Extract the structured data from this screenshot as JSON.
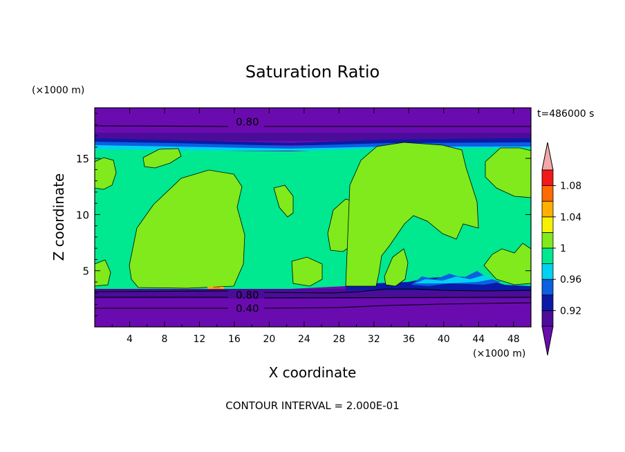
{
  "chart_data": {
    "type": "heatmap",
    "title": "Saturation Ratio",
    "xlabel": "X coordinate",
    "ylabel": "Z coordinate",
    "x_unit": "(×1000 m)",
    "y_unit": "(×1000 m)",
    "time_label": "t=486000 s",
    "footer": "CONTOUR INTERVAL = 2.000E-01",
    "xlim": [
      0,
      50
    ],
    "ylim": [
      0,
      19.5
    ],
    "x_ticks": [
      4,
      8,
      12,
      16,
      20,
      24,
      28,
      32,
      36,
      40,
      44,
      48
    ],
    "y_ticks": [
      5,
      10,
      15
    ],
    "colorbar": {
      "tick_labels": [
        "0.92",
        "0.96",
        "1",
        "1.04",
        "1.08"
      ],
      "levels": [
        0.9,
        0.92,
        0.94,
        0.96,
        0.98,
        1.0,
        1.02,
        1.04,
        1.06,
        1.08,
        1.1
      ],
      "colors": [
        "#4b0c9a",
        "#0a1aa6",
        "#0b5fe0",
        "#00d2f0",
        "#00e890",
        "#80ea1c",
        "#f4f200",
        "#ffb000",
        "#ff6a00",
        "#f01818",
        "#f3a7a7"
      ],
      "under_color": "#6a0bb0",
      "over_color": "#f3a7a7"
    },
    "contour_labels": [
      {
        "text": "0.80",
        "x": 17.5,
        "z": 18.3
      },
      {
        "text": "0.80",
        "x": 17.5,
        "z": 2.9
      },
      {
        "text": "0.40",
        "x": 17.5,
        "z": 1.7
      }
    ],
    "regions": {
      "background_low": {
        "level": "< 0.9",
        "z_range": [
          0,
          3.3
        ]
      },
      "background_high": {
        "level": "< 0.9",
        "z_range": [
          17.0,
          19.5
        ]
      },
      "interior": {
        "level": "0.98 - 1.0",
        "z_range": [
          3.3,
          17.0
        ]
      },
      "supersaturated_blobs": {
        "level": "1.0 - 1.02",
        "x_ranges": [
          [
            0,
            2.4
          ],
          [
            5,
            17.7
          ],
          [
            21,
            23
          ],
          [
            27.5,
            31.5
          ],
          [
            31.5,
            44
          ],
          [
            44,
            50
          ]
        ]
      }
    }
  }
}
